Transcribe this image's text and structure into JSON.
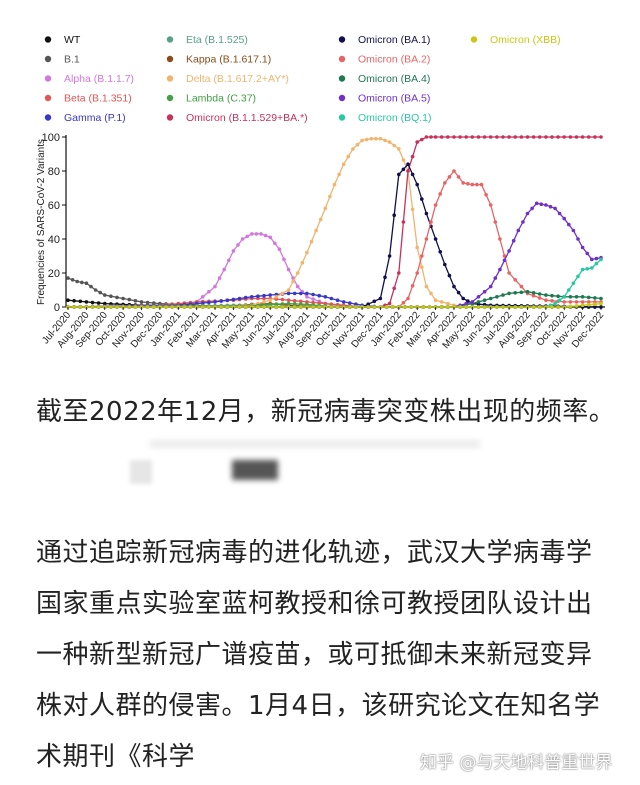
{
  "chart_data": {
    "type": "line",
    "ylabel": "Frequencies of SARS-CoV-2 Variants",
    "ylim": [
      0,
      100
    ],
    "yticks": [
      0,
      20,
      40,
      60,
      80,
      100
    ],
    "legend_position": "top",
    "categories": [
      "Jul-2020",
      "Aug-2020",
      "Sep-2020",
      "Oct-2020",
      "Nov-2020",
      "Dec-2020",
      "Jan-2021",
      "Feb-2021",
      "Mar-2021",
      "Apr-2021",
      "May-2021",
      "Jun-2021",
      "Jul-2021",
      "Aug-2021",
      "Sep-2021",
      "Oct-2021",
      "Nov-2021",
      "Dec-2021",
      "Jan-2022",
      "Feb-2022",
      "Mar-2022",
      "Apr-2022",
      "May-2022",
      "Jun-2022",
      "Jul-2022",
      "Aug-2022",
      "Sep-2022",
      "Oct-2022",
      "Nov-2022",
      "Dec-2022"
    ],
    "series": [
      {
        "name": "WT",
        "color": "#111111",
        "points": [
          [
            0,
            4
          ],
          [
            1,
            3
          ],
          [
            2,
            2
          ],
          [
            3,
            1.5
          ],
          [
            4,
            1
          ],
          [
            5,
            1
          ],
          [
            6,
            0.5
          ],
          [
            7,
            0.3
          ],
          [
            8,
            0
          ],
          [
            9,
            0
          ],
          [
            29,
            0
          ]
        ]
      },
      {
        "name": "B.1",
        "color": "#555555",
        "points": [
          [
            0,
            17
          ],
          [
            0.5,
            15
          ],
          [
            1,
            14
          ],
          [
            1.5,
            10
          ],
          [
            2,
            7
          ],
          [
            3,
            5
          ],
          [
            4,
            3
          ],
          [
            5,
            2
          ],
          [
            6,
            1.5
          ],
          [
            7,
            1
          ],
          [
            8,
            0.5
          ],
          [
            9,
            0
          ],
          [
            29,
            0
          ]
        ]
      },
      {
        "name": "Alpha (B.1.1.7)",
        "color": "#d278dc",
        "points": [
          [
            0,
            0
          ],
          [
            6,
            0.5
          ],
          [
            7,
            3
          ],
          [
            8,
            12
          ],
          [
            8.5,
            22
          ],
          [
            9,
            33
          ],
          [
            9.5,
            40
          ],
          [
            10,
            43
          ],
          [
            10.5,
            43
          ],
          [
            11,
            41
          ],
          [
            11.5,
            34
          ],
          [
            12,
            22
          ],
          [
            12.5,
            12
          ],
          [
            13,
            6
          ],
          [
            14,
            2
          ],
          [
            15,
            0.5
          ],
          [
            16,
            0
          ],
          [
            29,
            0
          ]
        ]
      },
      {
        "name": "Beta (B.1.351)",
        "color": "#e05555",
        "points": [
          [
            0,
            0
          ],
          [
            5,
            1
          ],
          [
            7,
            3
          ],
          [
            9,
            4
          ],
          [
            10,
            5
          ],
          [
            11,
            5
          ],
          [
            12,
            4
          ],
          [
            13,
            3
          ],
          [
            14,
            2
          ],
          [
            15,
            1
          ],
          [
            16,
            0
          ],
          [
            29,
            0
          ]
        ]
      },
      {
        "name": "Gamma (P.1)",
        "color": "#3838c8",
        "points": [
          [
            0,
            0
          ],
          [
            6,
            1
          ],
          [
            8,
            3
          ],
          [
            10,
            6
          ],
          [
            11,
            7
          ],
          [
            12,
            8
          ],
          [
            13,
            8
          ],
          [
            14,
            6
          ],
          [
            15,
            3
          ],
          [
            16,
            1
          ],
          [
            17,
            0
          ],
          [
            29,
            0
          ]
        ]
      },
      {
        "name": "Eta (B.1.525)",
        "color": "#58a088",
        "points": [
          [
            0,
            0
          ],
          [
            7,
            0.5
          ],
          [
            9,
            1
          ],
          [
            10,
            1
          ],
          [
            11,
            0.5
          ],
          [
            12,
            0
          ],
          [
            29,
            0
          ]
        ]
      },
      {
        "name": "Kappa (B.1.617.1)",
        "color": "#8a4a1a",
        "points": [
          [
            0,
            0
          ],
          [
            9,
            0.5
          ],
          [
            10,
            1.5
          ],
          [
            11,
            2
          ],
          [
            12,
            1
          ],
          [
            13,
            0.5
          ],
          [
            14,
            0
          ],
          [
            29,
            0
          ]
        ]
      },
      {
        "name": "Delta (B.1.617.2+AY*)",
        "color": "#f0b46e",
        "points": [
          [
            0,
            0
          ],
          [
            9,
            0.5
          ],
          [
            10,
            1
          ],
          [
            11,
            4
          ],
          [
            12,
            10
          ],
          [
            12.5,
            20
          ],
          [
            13,
            32
          ],
          [
            13.5,
            45
          ],
          [
            14,
            58
          ],
          [
            14.5,
            72
          ],
          [
            15,
            84
          ],
          [
            15.5,
            93
          ],
          [
            16,
            98
          ],
          [
            16.5,
            99
          ],
          [
            17,
            99
          ],
          [
            17.5,
            97
          ],
          [
            18,
            93
          ],
          [
            18.5,
            80
          ],
          [
            19,
            35
          ],
          [
            19.5,
            12
          ],
          [
            20,
            4
          ],
          [
            21,
            1
          ],
          [
            22,
            0
          ],
          [
            29,
            0
          ]
        ]
      },
      {
        "name": "Lambda (C.37)",
        "color": "#44a044",
        "points": [
          [
            0,
            0
          ],
          [
            10,
            0.5
          ],
          [
            11,
            1.5
          ],
          [
            12,
            2
          ],
          [
            13,
            1.5
          ],
          [
            14,
            0.5
          ],
          [
            15,
            0
          ],
          [
            29,
            0
          ]
        ]
      },
      {
        "name": "Omicron (B.1.1.529+BA.*)",
        "color": "#c8325a",
        "points": [
          [
            0,
            0
          ],
          [
            17,
            0
          ],
          [
            17.5,
            2
          ],
          [
            18,
            20
          ],
          [
            18.5,
            80
          ],
          [
            19,
            97
          ],
          [
            19.5,
            100
          ],
          [
            20,
            100
          ],
          [
            29,
            100
          ]
        ]
      },
      {
        "name": "Omicron (BA.1)",
        "color": "#101050",
        "points": [
          [
            0,
            0
          ],
          [
            16,
            0
          ],
          [
            17,
            5
          ],
          [
            17.5,
            30
          ],
          [
            18,
            78
          ],
          [
            18.5,
            84
          ],
          [
            19,
            72
          ],
          [
            19.5,
            55
          ],
          [
            20,
            40
          ],
          [
            20.5,
            25
          ],
          [
            21,
            12
          ],
          [
            21.5,
            5
          ],
          [
            22,
            2
          ],
          [
            23,
            1
          ],
          [
            29,
            0
          ]
        ]
      },
      {
        "name": "Omicron (BA.2)",
        "color": "#e86464",
        "points": [
          [
            0,
            0
          ],
          [
            18,
            0
          ],
          [
            18.5,
            5
          ],
          [
            19,
            20
          ],
          [
            19.5,
            40
          ],
          [
            20,
            60
          ],
          [
            20.5,
            73
          ],
          [
            21,
            80
          ],
          [
            21.5,
            73
          ],
          [
            22,
            72
          ],
          [
            22.5,
            72
          ],
          [
            23,
            60
          ],
          [
            23.5,
            40
          ],
          [
            24,
            20
          ],
          [
            25,
            8
          ],
          [
            26,
            4
          ],
          [
            27,
            3
          ],
          [
            28,
            3
          ],
          [
            29,
            3
          ]
        ]
      },
      {
        "name": "Omicron (BA.4)",
        "color": "#1e7850",
        "points": [
          [
            0,
            0
          ],
          [
            21,
            0
          ],
          [
            22,
            2
          ],
          [
            23,
            5
          ],
          [
            24,
            8
          ],
          [
            25,
            9
          ],
          [
            26,
            7
          ],
          [
            27,
            6
          ],
          [
            28,
            6
          ],
          [
            29,
            5
          ]
        ]
      },
      {
        "name": "Omicron (BA.5)",
        "color": "#7030c8",
        "points": [
          [
            0,
            0
          ],
          [
            21,
            0
          ],
          [
            22,
            3
          ],
          [
            23,
            12
          ],
          [
            23.5,
            22
          ],
          [
            24,
            33
          ],
          [
            24.5,
            45
          ],
          [
            25,
            55
          ],
          [
            25.5,
            61
          ],
          [
            26,
            60
          ],
          [
            26.5,
            58
          ],
          [
            27,
            52
          ],
          [
            27.5,
            45
          ],
          [
            28,
            35
          ],
          [
            28.5,
            28
          ],
          [
            29,
            29
          ]
        ]
      },
      {
        "name": "Omicron (BQ.1)",
        "color": "#28c8a0",
        "points": [
          [
            0,
            0
          ],
          [
            26,
            0
          ],
          [
            26.5,
            2
          ],
          [
            27,
            6
          ],
          [
            27.5,
            14
          ],
          [
            28,
            22
          ],
          [
            28.5,
            23
          ],
          [
            29,
            28
          ]
        ]
      },
      {
        "name": "Omicron (XBB)",
        "color": "#c8c814",
        "points": [
          [
            0,
            0
          ],
          [
            27,
            0
          ],
          [
            28,
            1
          ],
          [
            29,
            2
          ]
        ]
      }
    ]
  },
  "caption": "截至2022年12月，新冠病毒突变株出现的频率。",
  "body_text": "通过追踪新冠病毒的进化轨迹，武汉大学病毒学国家重点实验室蓝柯教授和徐可教授团队设计出一种新型新冠广谱疫苗，或可抵御未来新冠变异株对人群的侵害。1月4日，该研究论文在知名学术期刊《科学",
  "watermark": "知乎 @与天地科普重世界"
}
